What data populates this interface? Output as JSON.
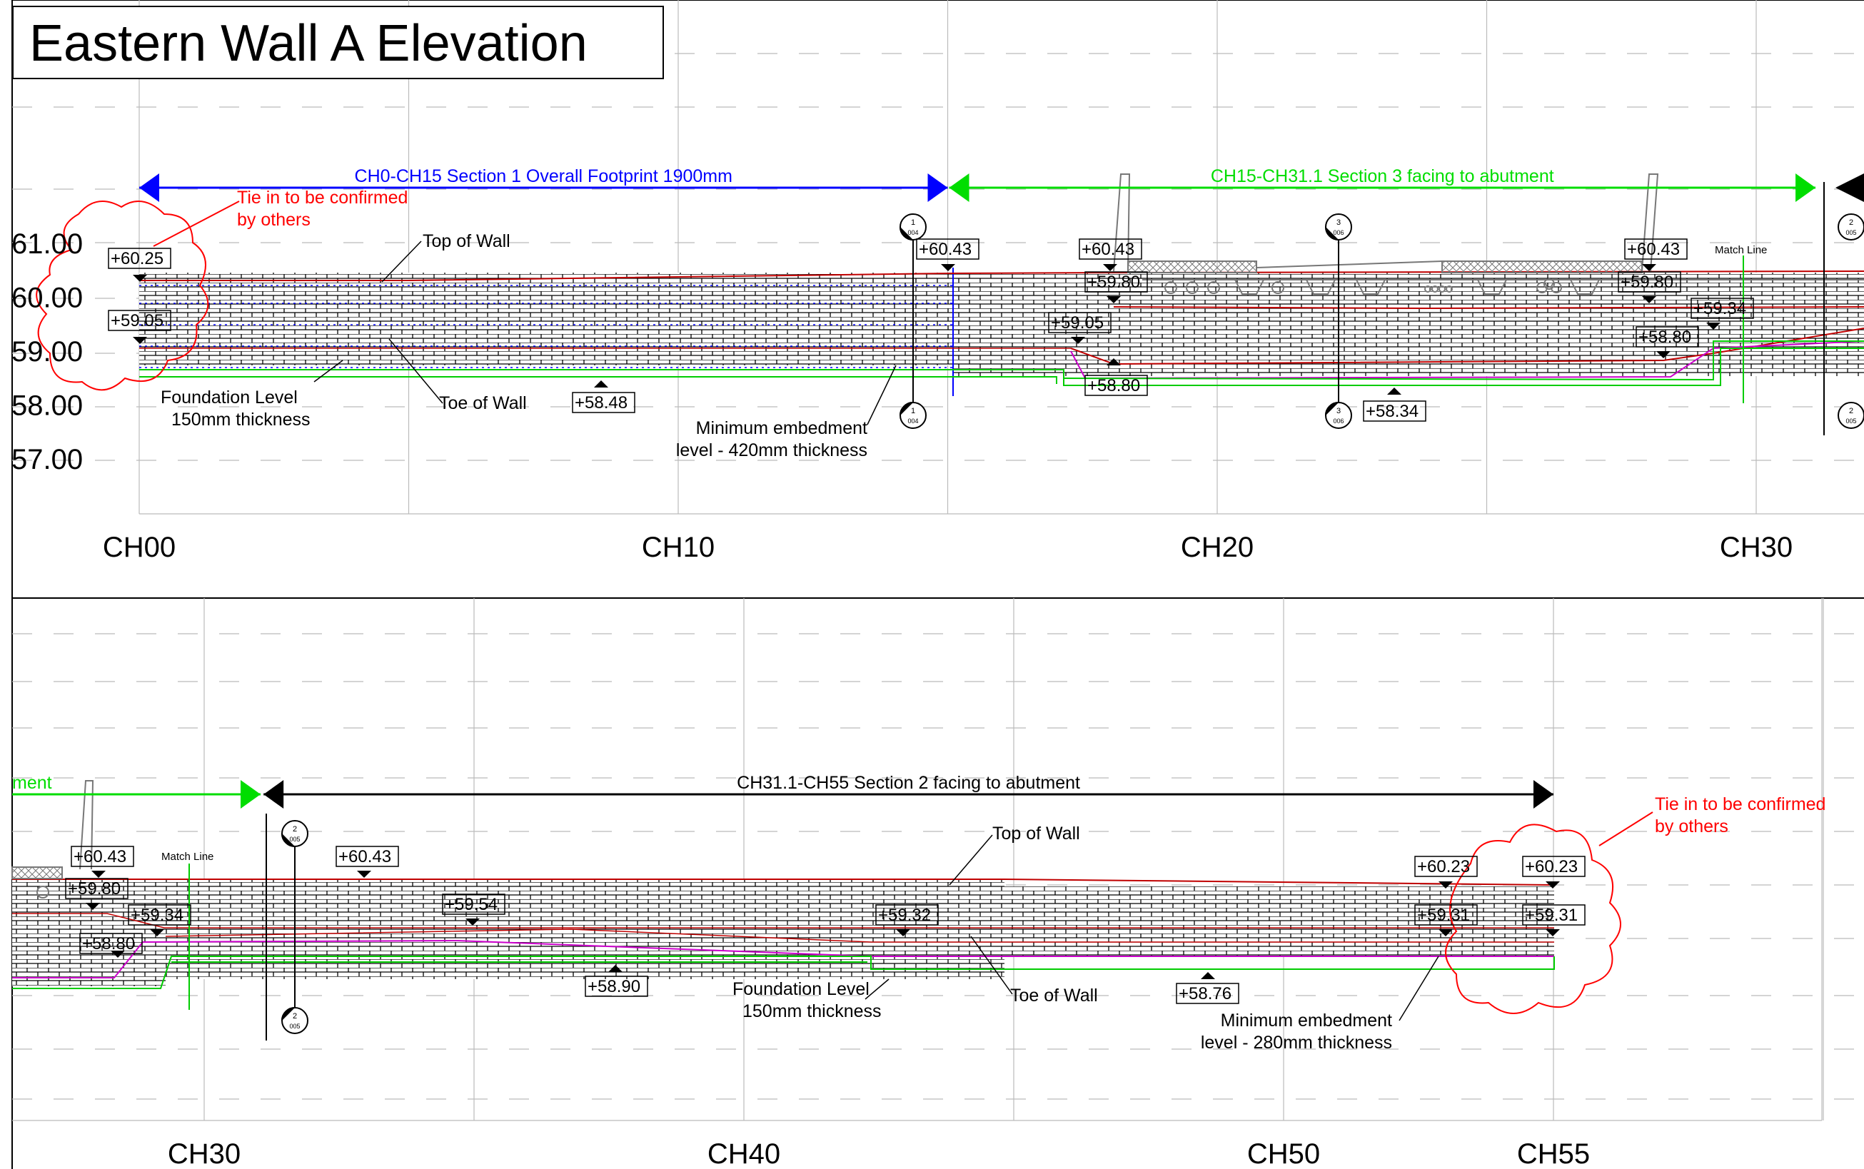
{
  "title": "Eastern Wall A Elevation",
  "colors": {
    "section1": "#0000ff",
    "section3": "#00ff00",
    "section2": "#000000",
    "cloud": "#ff0000",
    "wall_top_line": "#c00000",
    "embedment": "#cc00cc",
    "foundation": "#00cc00"
  },
  "top_panel": {
    "level_labels": [
      "61.00",
      "60.00",
      "59.00",
      "58.00",
      "57.00"
    ],
    "chainages": [
      {
        "label": "CH00",
        "ch": 0
      },
      {
        "label": "CH10",
        "ch": 10
      },
      {
        "label": "CH20",
        "ch": 20
      },
      {
        "label": "CH30",
        "ch": 30
      }
    ],
    "dims": [
      {
        "text": "CH0-CH15 Section 1 Overall Footprint 1900mm",
        "from_ch": 0,
        "to_ch": 15,
        "color": "#0000ff"
      },
      {
        "text": "CH15-CH31.1 Section 3 facing to abutment",
        "from_ch": 15,
        "to_ch": 31.1,
        "color": "#00dd00"
      }
    ],
    "tie_in": {
      "line1": "Tie in to be confirmed",
      "line2": "by others"
    },
    "callouts": {
      "top_of_wall": "Top of Wall",
      "toe_of_wall": "Toe of Wall",
      "foundation1": "Foundation Level",
      "foundation2": "150mm thickness",
      "embed1": "Minimum embedment",
      "embed2": "level - 420mm thickness"
    },
    "match_line": "Match Line",
    "spots": [
      "+60.25",
      "+59.05",
      "+60.43",
      "+58.48",
      "+60.43",
      "+59.80",
      "+59.05",
      "+58.80",
      "+58.34",
      "+60.43",
      "+59.80",
      "+59.34",
      "+58.80"
    ],
    "sections": [
      {
        "num": "1",
        "sheet": "004"
      },
      {
        "num": "3",
        "sheet": "006"
      },
      {
        "num": "2",
        "sheet": "005"
      }
    ]
  },
  "bottom_panel": {
    "chainages": [
      {
        "label": "CH30",
        "ch": 30
      },
      {
        "label": "CH40",
        "ch": 40
      },
      {
        "label": "CH50",
        "ch": 50
      },
      {
        "label": "CH55",
        "ch": 55
      }
    ],
    "dim_fragment": "ment",
    "dims": [
      {
        "text": "CH31.1-CH55 Section 2 facing to abutment",
        "from_ch": 31.1,
        "to_ch": 55,
        "color": "#000000"
      }
    ],
    "tie_in": {
      "line1": "Tie in to be confirmed",
      "line2": "by others"
    },
    "callouts": {
      "top_of_wall": "Top of Wall",
      "toe_of_wall": "Toe of Wall",
      "foundation1": "Foundation Level",
      "foundation2": "150mm thickness",
      "embed1": "Minimum embedment",
      "embed2": "level - 280mm thickness"
    },
    "match_line": "Match Line",
    "spots": [
      "+60.43",
      "+59.80",
      "+59.34",
      "+58.80",
      "+60.43",
      "+59.54",
      "+58.90",
      "+59.32",
      "+60.23",
      "+59.31",
      "+58.76",
      "+60.23",
      "+59.31"
    ],
    "sections": [
      {
        "num": "2",
        "sheet": "005"
      }
    ]
  }
}
